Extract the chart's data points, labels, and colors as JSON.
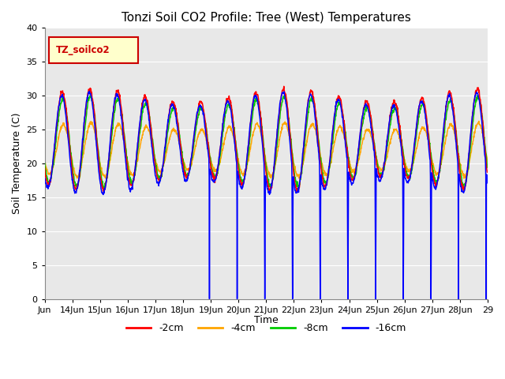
{
  "title": "Tonzi Soil CO2 Profile: Tree (West) Temperatures",
  "ylabel": "Soil Temperature (C)",
  "xlabel": "Time",
  "legend_label": "TZ_soilco2",
  "ylim": [
    0,
    40
  ],
  "series_labels": [
    "-2cm",
    "-4cm",
    "-8cm",
    "-16cm"
  ],
  "series_colors": [
    "#ff0000",
    "#ffa500",
    "#00cc00",
    "#0000ff"
  ],
  "bg_color": "#e8e8e8",
  "legend_box_color": "#ffffcc",
  "legend_box_edge": "#cc0000",
  "grid_color": "#ffffff",
  "tick_labels": [
    "Jun",
    "14Jun",
    "15Jun",
    "16Jun",
    "17Jun",
    "18Jun",
    "19Jun",
    "20Jun",
    "21Jun",
    "22Jun",
    "23Jun",
    "24Jun",
    "25Jun",
    "26Jun",
    "27Jun",
    "28Jun",
    "29"
  ],
  "tick_positions": [
    0,
    1,
    2,
    3,
    4,
    5,
    6,
    7,
    8,
    9,
    10,
    11,
    12,
    13,
    14,
    15,
    16
  ]
}
